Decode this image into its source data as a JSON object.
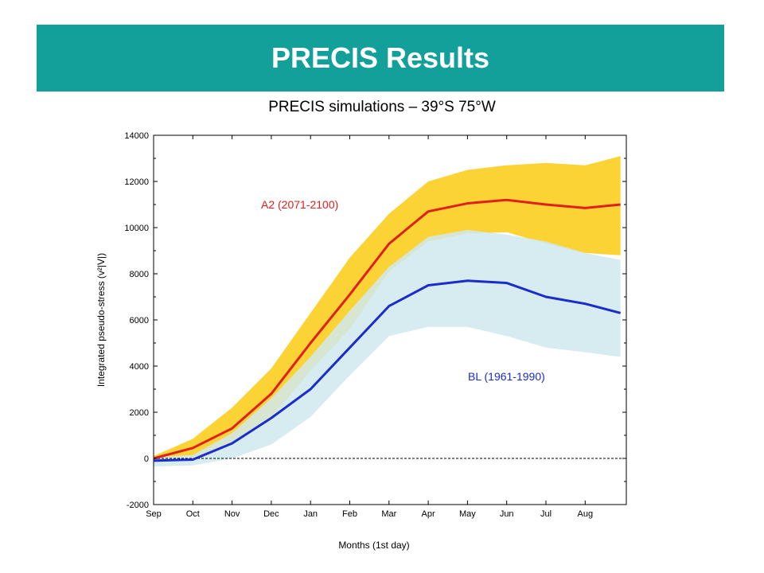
{
  "slide": {
    "title": "PRECIS Results",
    "subtitle": "PRECIS simulations – 39°S 75°W",
    "banner_color": "#14a09a"
  },
  "chart_data": {
    "type": "area",
    "title": "PRECIS simulations – 39°S 75°W",
    "xlabel": "Months (1st day)",
    "ylabel": "Integrated pseudo-stress (v²|V|)",
    "categories": [
      "Sep",
      "Oct",
      "Nov",
      "Dec",
      "Jan",
      "Feb",
      "Mar",
      "Apr",
      "May",
      "Jun",
      "Jul",
      "Aug"
    ],
    "x": [
      0,
      1,
      2,
      3,
      4,
      5,
      6,
      7,
      8,
      9,
      10,
      11,
      11.9
    ],
    "xlim": [
      0,
      12
    ],
    "ylim": [
      -2000,
      14000
    ],
    "yticks": [
      -2000,
      0,
      2000,
      4000,
      6000,
      8000,
      10000,
      12000,
      14000
    ],
    "zero_line": true,
    "series": [
      {
        "name": "A2 (2071-2100)",
        "color": "#e0201b",
        "band_color": "#fcd12a",
        "mean": [
          0,
          450,
          1300,
          2800,
          5000,
          7100,
          9300,
          10700,
          11050,
          11200,
          11000,
          10850,
          11000
        ],
        "upper": [
          100,
          850,
          2200,
          3900,
          6300,
          8700,
          10600,
          12000,
          12500,
          12700,
          12800,
          12700,
          13100
        ],
        "lower": [
          -100,
          50,
          600,
          1750,
          3800,
          5600,
          8100,
          9400,
          9750,
          9800,
          9300,
          8900,
          8800
        ]
      },
      {
        "name": "BL (1961-1990)",
        "color": "#1a2ccc",
        "band_color": "#cfe9ee",
        "mean": [
          -100,
          -50,
          650,
          1750,
          3000,
          4800,
          6600,
          7500,
          7700,
          7600,
          7000,
          6700,
          6300
        ],
        "upper": [
          50,
          150,
          1100,
          2600,
          4400,
          6400,
          8300,
          9600,
          9900,
          9700,
          9400,
          8900,
          8600
        ],
        "lower": [
          -350,
          -300,
          0,
          600,
          1800,
          3600,
          5300,
          5700,
          5700,
          5300,
          4800,
          4600,
          4400
        ]
      }
    ]
  }
}
